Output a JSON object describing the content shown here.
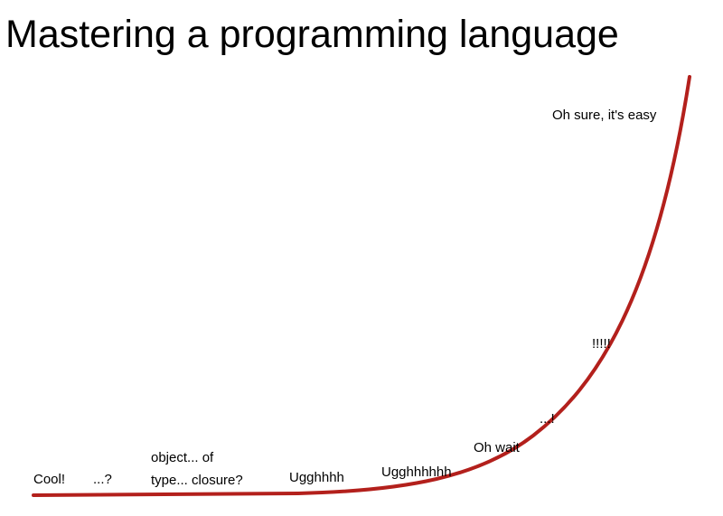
{
  "title": "Mastering a programming language",
  "labels": [
    [
      "Cool!"
    ],
    [
      "...?"
    ],
    [
      "object... of",
      "type... closure?"
    ],
    [
      "Ugghhhh"
    ],
    [
      "Ugghhhhhh"
    ],
    [
      "Oh wait"
    ],
    [
      "...!"
    ],
    [
      "!!!!!"
    ],
    [
      "Oh sure, it's easy"
    ]
  ]
}
